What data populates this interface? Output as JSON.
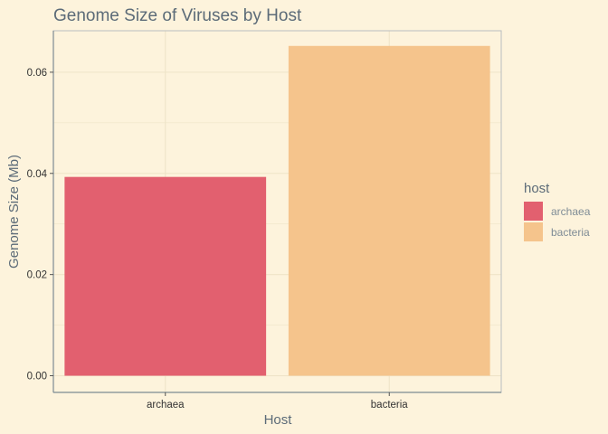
{
  "chart_data": {
    "type": "bar",
    "title": "Genome Size of Viruses by Host",
    "xlabel": "Host",
    "ylabel": "Genome Size (Mb)",
    "categories": [
      "archaea",
      "bacteria"
    ],
    "values": [
      0.0393,
      0.0652
    ],
    "colors": [
      "#e2606f",
      "#f5c48c"
    ],
    "ylim": [
      -0.0033,
      0.0682
    ],
    "yticks": [
      0,
      0.02,
      0.04,
      0.06
    ],
    "ytick_labels": [
      "0.00",
      "0.02",
      "0.04",
      "0.06"
    ],
    "grid": true,
    "legend": {
      "title": "host",
      "placement": "right",
      "entries": [
        "archaea",
        "bacteria"
      ]
    }
  },
  "colors": {
    "background": "#fdf3dc",
    "grid": "#efe4c8",
    "axis_line": "#7d8a93",
    "text": "#5c6b78"
  }
}
